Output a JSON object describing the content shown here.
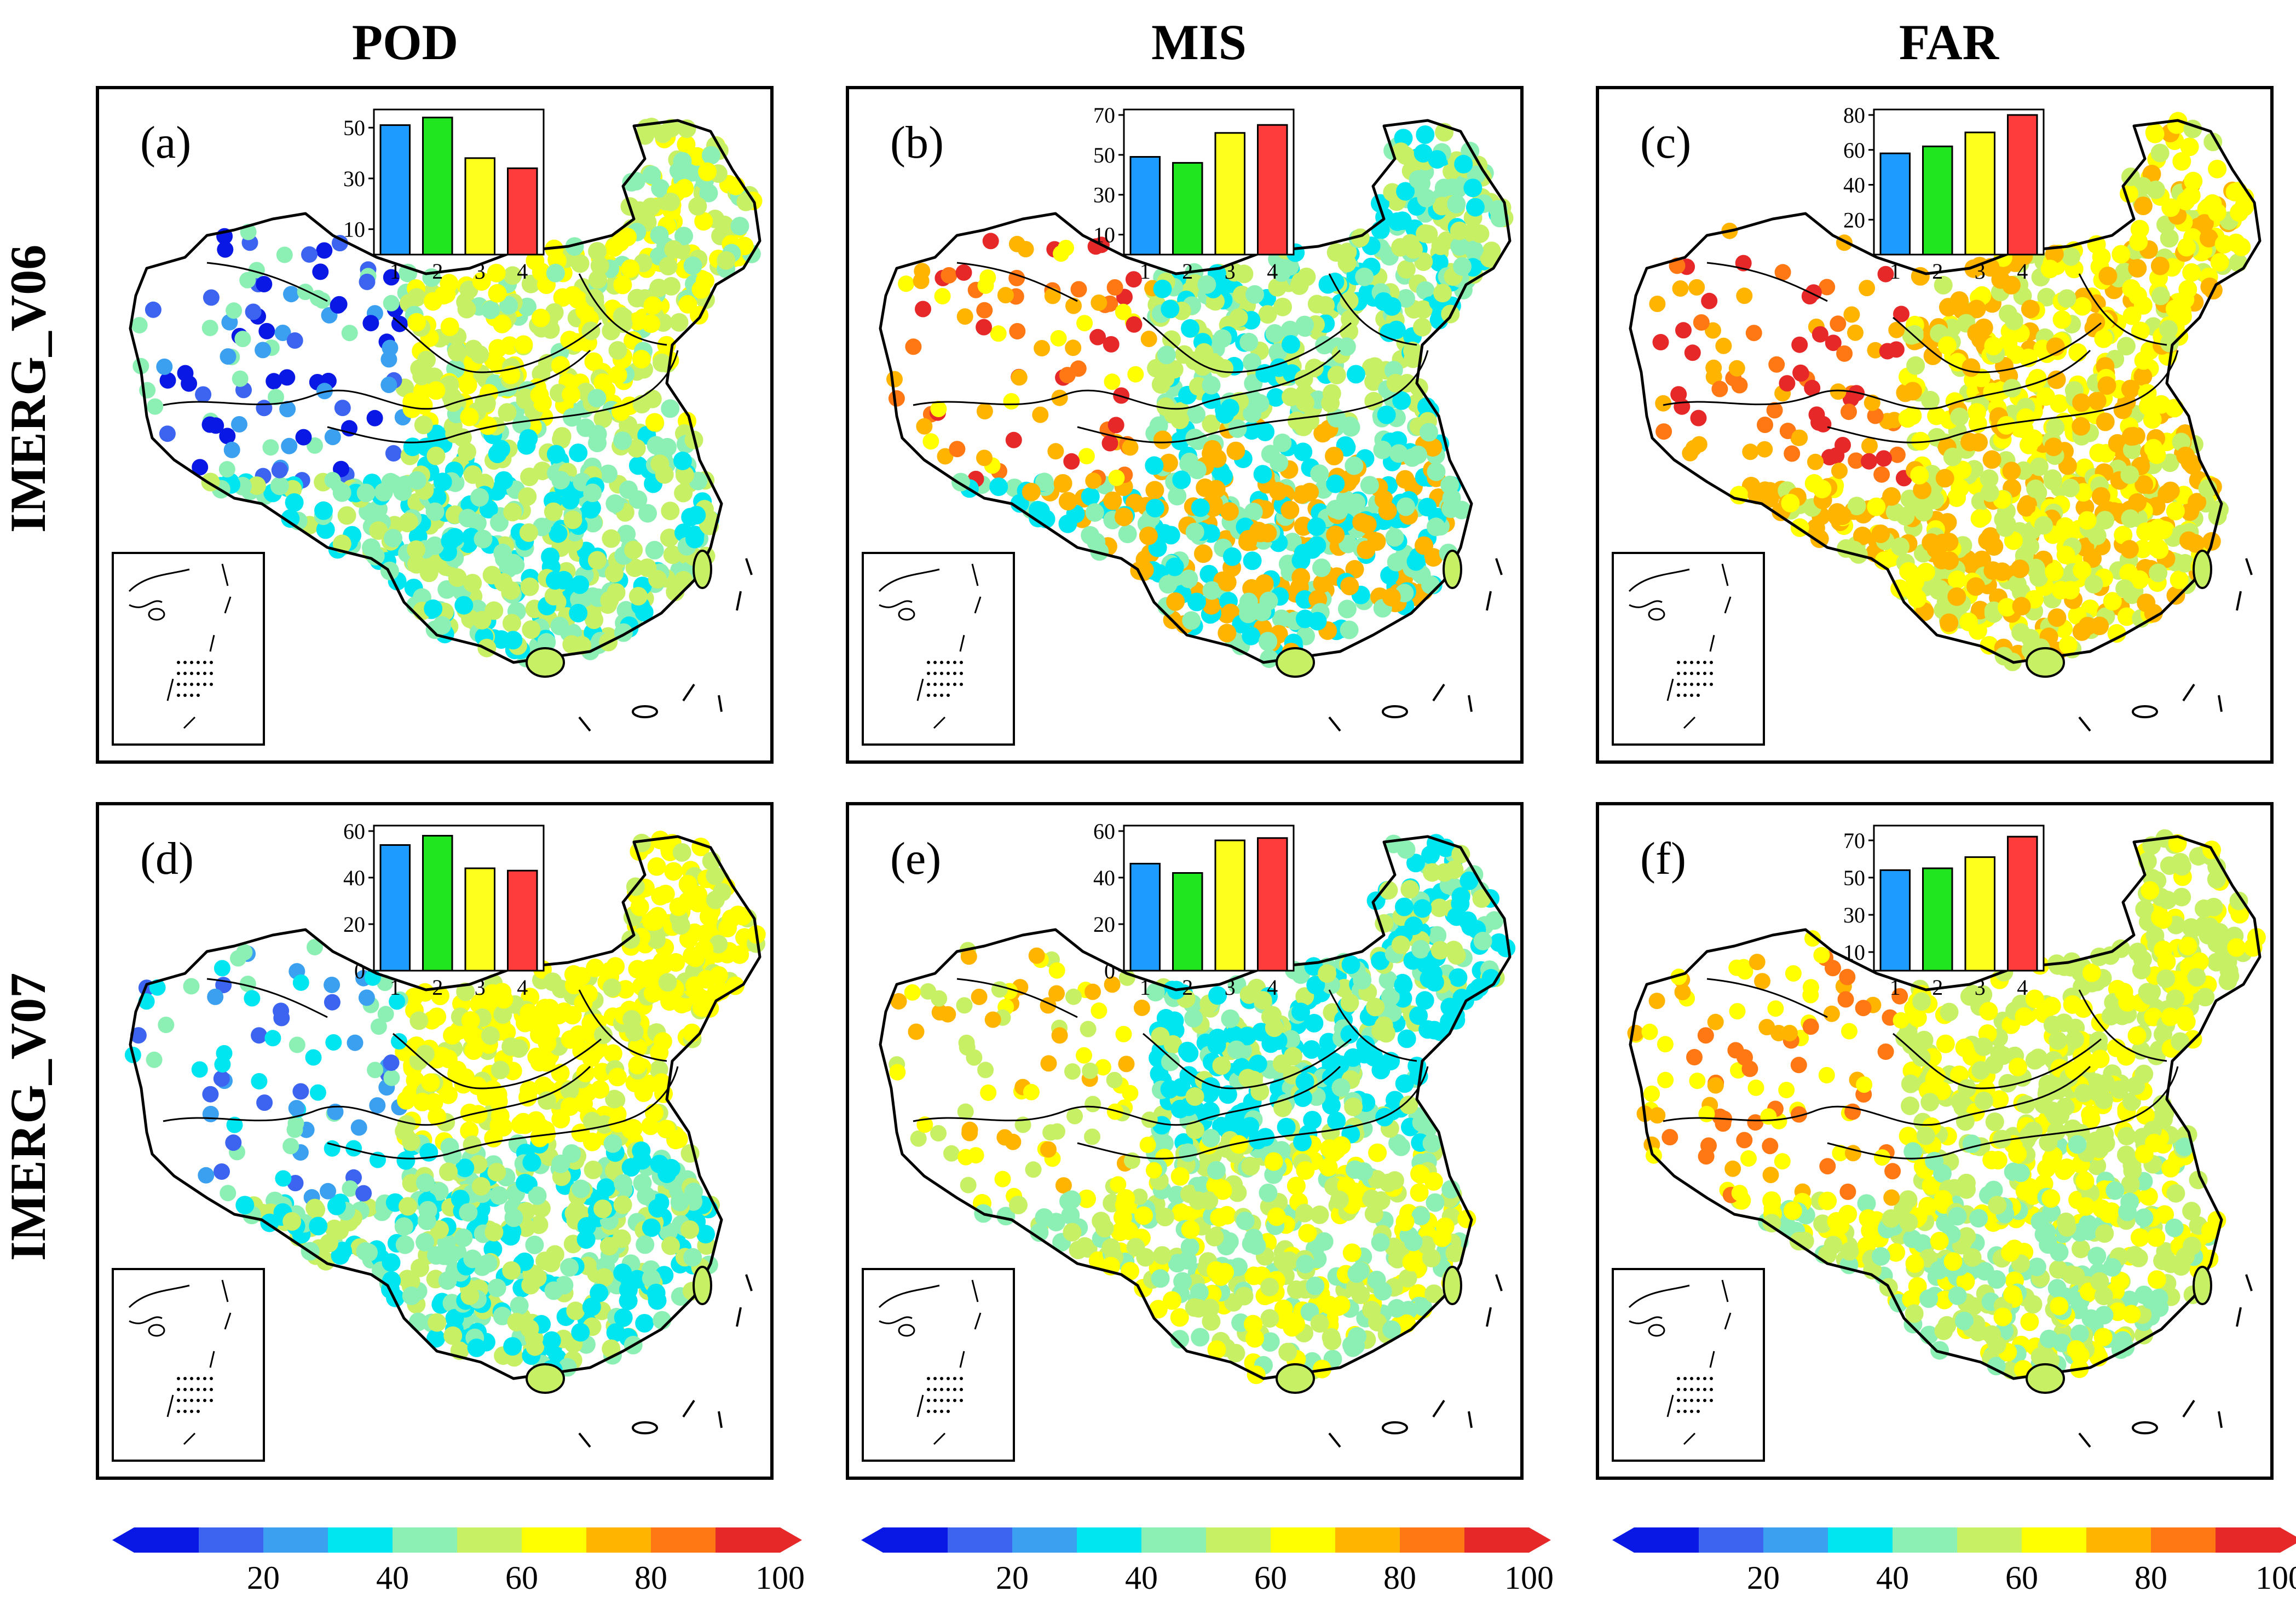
{
  "figure": {
    "columns": [
      "POD",
      "MIS",
      "FAR"
    ],
    "rows": [
      "IMERG_V06",
      "IMERG_V07"
    ]
  },
  "chart_data": [
    {
      "id": "a",
      "label": "(a)",
      "type": "bar",
      "metric": "POD",
      "product": "IMERG_V06",
      "categories": [
        "1",
        "2",
        "3",
        "4"
      ],
      "values": [
        51,
        54,
        38,
        34
      ],
      "ylim": [
        0,
        55
      ],
      "yticks": [
        10,
        30,
        50
      ]
    },
    {
      "id": "b",
      "label": "(b)",
      "type": "bar",
      "metric": "MIS",
      "product": "IMERG_V06",
      "categories": [
        "1",
        "2",
        "3",
        "4"
      ],
      "values": [
        49,
        46,
        61,
        65
      ],
      "ylim": [
        0,
        70
      ],
      "yticks": [
        10,
        30,
        50,
        70
      ]
    },
    {
      "id": "c",
      "label": "(c)",
      "type": "bar",
      "metric": "FAR",
      "product": "IMERG_V06",
      "categories": [
        "1",
        "2",
        "3",
        "4"
      ],
      "values": [
        58,
        62,
        70,
        80
      ],
      "ylim": [
        0,
        80
      ],
      "yticks": [
        20,
        40,
        60,
        80
      ]
    },
    {
      "id": "d",
      "label": "(d)",
      "type": "bar",
      "metric": "POD",
      "product": "IMERG_V07",
      "categories": [
        "1",
        "2",
        "3",
        "4"
      ],
      "values": [
        54,
        58,
        44,
        43
      ],
      "ylim": [
        0,
        60
      ],
      "yticks": [
        0,
        20,
        40,
        60
      ]
    },
    {
      "id": "e",
      "label": "(e)",
      "type": "bar",
      "metric": "MIS",
      "product": "IMERG_V07",
      "categories": [
        "1",
        "2",
        "3",
        "4"
      ],
      "values": [
        46,
        42,
        56,
        57
      ],
      "ylim": [
        0,
        60
      ],
      "yticks": [
        0,
        20,
        40,
        60
      ]
    },
    {
      "id": "f",
      "label": "(f)",
      "type": "bar",
      "metric": "FAR",
      "product": "IMERG_V07",
      "categories": [
        "1",
        "2",
        "3",
        "4"
      ],
      "values": [
        54,
        55,
        61,
        72
      ],
      "ylim": [
        0,
        75
      ],
      "yticks": [
        10,
        30,
        50,
        70
      ]
    }
  ],
  "bar_colors": [
    "#1e9bff",
    "#1fe61f",
    "#ffff1e",
    "#ff3c3c"
  ],
  "colorbar": {
    "range": [
      0,
      100
    ],
    "tick_labels": [
      "20",
      "40",
      "60",
      "80",
      "100"
    ],
    "colors": [
      "#0a18e6",
      "#3c64f0",
      "#3ca0f0",
      "#00e6f0",
      "#8cf0b4",
      "#c8f064",
      "#ffff00",
      "#ffb400",
      "#ff7814",
      "#e62828"
    ]
  }
}
